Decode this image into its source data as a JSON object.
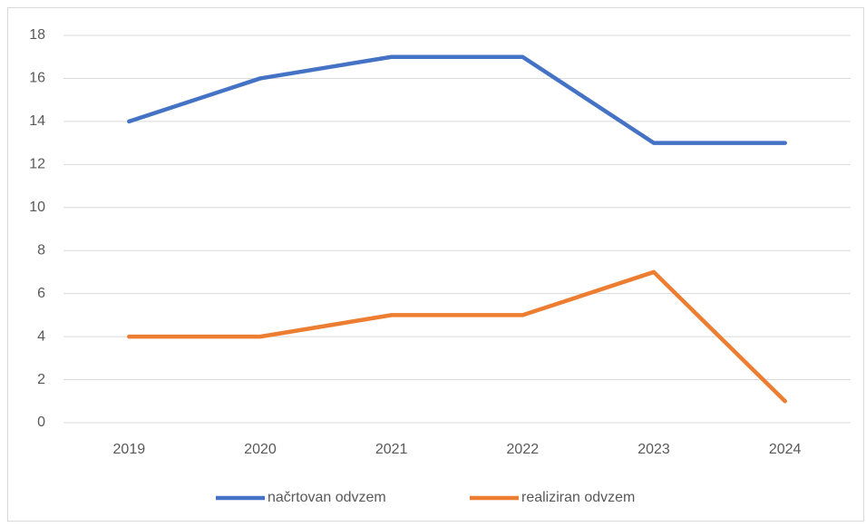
{
  "chart_data": {
    "type": "line",
    "categories": [
      "2019",
      "2020",
      "2021",
      "2022",
      "2023",
      "2024"
    ],
    "series": [
      {
        "name": "načrtovan odvzem",
        "color": "#4472c4",
        "values": [
          14,
          16,
          17,
          17,
          13,
          13
        ]
      },
      {
        "name": "realiziran odvzem",
        "color": "#ed7d31",
        "values": [
          4,
          4,
          5,
          5,
          7,
          1
        ]
      }
    ],
    "ylim": [
      0,
      18
    ],
    "yticks": [
      0,
      2,
      4,
      6,
      8,
      10,
      12,
      14,
      16,
      18
    ],
    "grid": true,
    "legend": "bottom"
  }
}
